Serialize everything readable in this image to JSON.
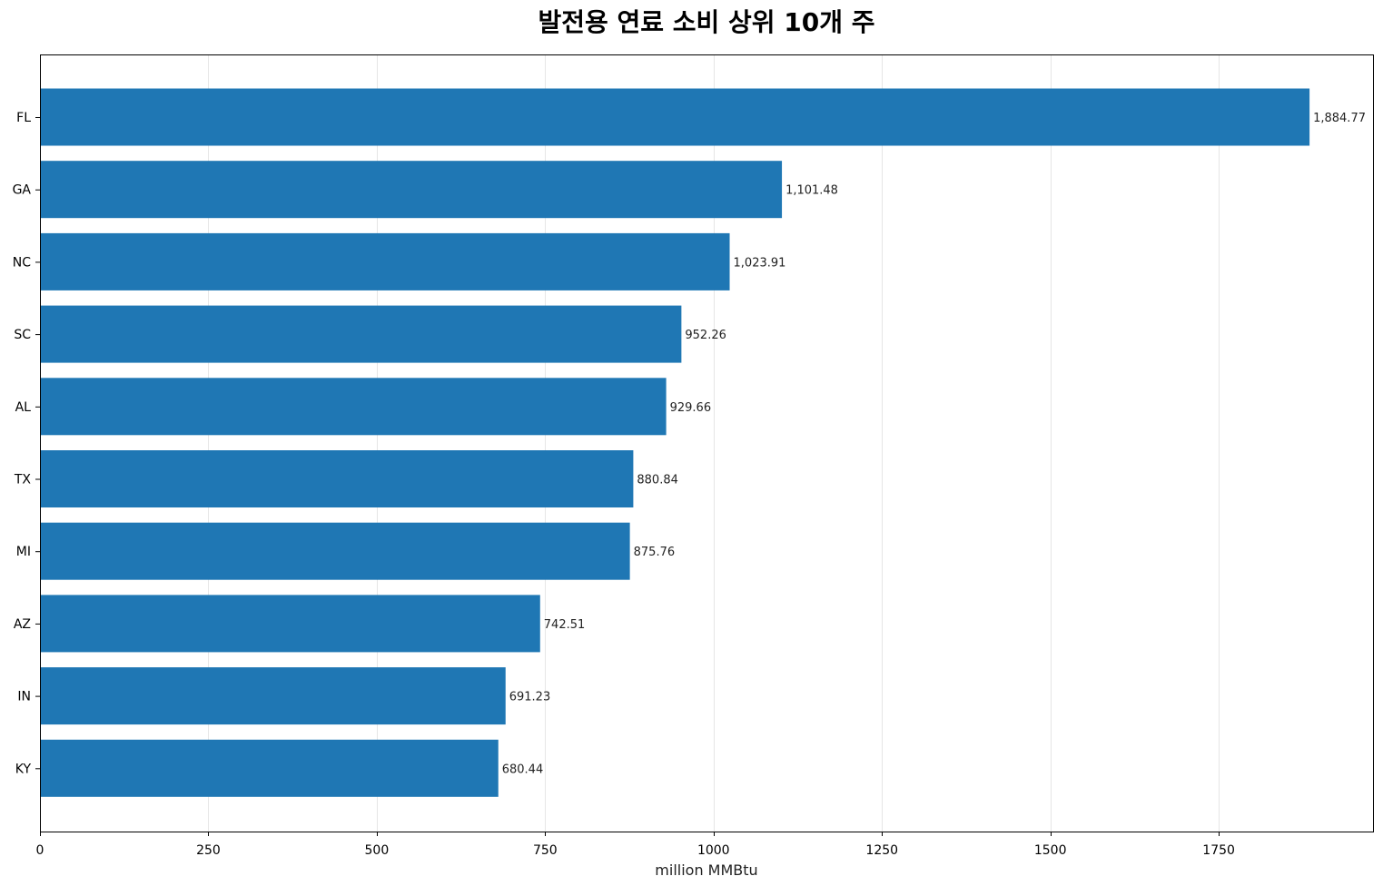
{
  "chart_data": {
    "type": "bar",
    "orientation": "horizontal",
    "title": "발전용 연료 소비 상위 10개 주",
    "xlabel": "million MMBtu",
    "ylabel": "",
    "categories": [
      "FL",
      "GA",
      "NC",
      "SC",
      "AL",
      "TX",
      "MI",
      "AZ",
      "IN",
      "KY"
    ],
    "values": [
      1884.77,
      1101.48,
      1023.91,
      952.26,
      929.66,
      880.84,
      875.76,
      742.51,
      691.23,
      680.44
    ],
    "value_labels": [
      "1,884.77",
      "1,101.48",
      "1,023.91",
      "952.26",
      "929.66",
      "880.84",
      "875.76",
      "742.51",
      "691.23",
      "680.44"
    ],
    "xlim": [
      0,
      1979
    ],
    "xticks": [
      0,
      250,
      500,
      750,
      1000,
      1250,
      1500,
      1750
    ],
    "xtick_labels": [
      "0",
      "250",
      "500",
      "750",
      "1000",
      "1250",
      "1500",
      "1750"
    ],
    "grid": "vertical",
    "bar_color": "#1f77b4"
  }
}
